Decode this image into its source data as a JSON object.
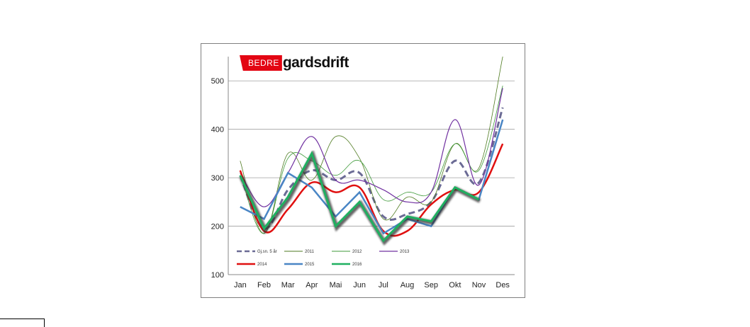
{
  "logo": {
    "box_text": "BEDRE",
    "text": "gardsdrift"
  },
  "chart_data": {
    "type": "line",
    "title": "",
    "xlabel": "",
    "ylabel": "",
    "categories": [
      "Jan",
      "Feb",
      "Mar",
      "Apr",
      "Mai",
      "Jun",
      "Jul",
      "Aug",
      "Sep",
      "Okt",
      "Nov",
      "Des"
    ],
    "ylim": [
      100,
      550
    ],
    "yticks": [
      100,
      200,
      300,
      400,
      500
    ],
    "grid": "horizontal",
    "legend_placement": "bottom-left inside plot",
    "series": [
      {
        "name": "Gj.sn. 5 år",
        "color": "#6b6b95",
        "style": "dashed",
        "width": 3,
        "smooth": true,
        "values": [
          305,
          195,
          275,
          315,
          295,
          310,
          220,
          225,
          250,
          335,
          290,
          445
        ]
      },
      {
        "name": "2011",
        "color": "#4e7a1f",
        "style": "solid",
        "width": 0.8,
        "smooth": true,
        "values": [
          335,
          185,
          350,
          295,
          385,
          340,
          215,
          260,
          250,
          370,
          320,
          550
        ]
      },
      {
        "name": "2012",
        "color": "#3f9a3a",
        "style": "solid",
        "width": 0.8,
        "smooth": true,
        "values": [
          310,
          185,
          340,
          335,
          305,
          335,
          255,
          270,
          270,
          370,
          315,
          490
        ]
      },
      {
        "name": "2013",
        "color": "#7030a0",
        "style": "solid",
        "width": 1.2,
        "smooth": true,
        "values": [
          310,
          240,
          310,
          385,
          295,
          295,
          275,
          250,
          270,
          420,
          285,
          485
        ]
      },
      {
        "name": "2014",
        "color": "#e01010",
        "style": "solid",
        "width": 2.5,
        "smooth": true,
        "values": [
          315,
          190,
          235,
          290,
          270,
          280,
          190,
          190,
          245,
          275,
          270,
          370
        ]
      },
      {
        "name": "2015",
        "color": "#4a86c5",
        "style": "solid",
        "width": 2.5,
        "smooth": false,
        "values": [
          240,
          215,
          310,
          280,
          220,
          270,
          185,
          215,
          200,
          280,
          255,
          420
        ]
      },
      {
        "name": "2016",
        "color": "#1fb060",
        "style": "solid",
        "width": 3,
        "smooth": false,
        "shadow": true,
        "values": [
          305,
          195,
          260,
          350,
          200,
          250,
          170,
          220,
          210,
          280,
          255,
          null
        ]
      }
    ]
  }
}
